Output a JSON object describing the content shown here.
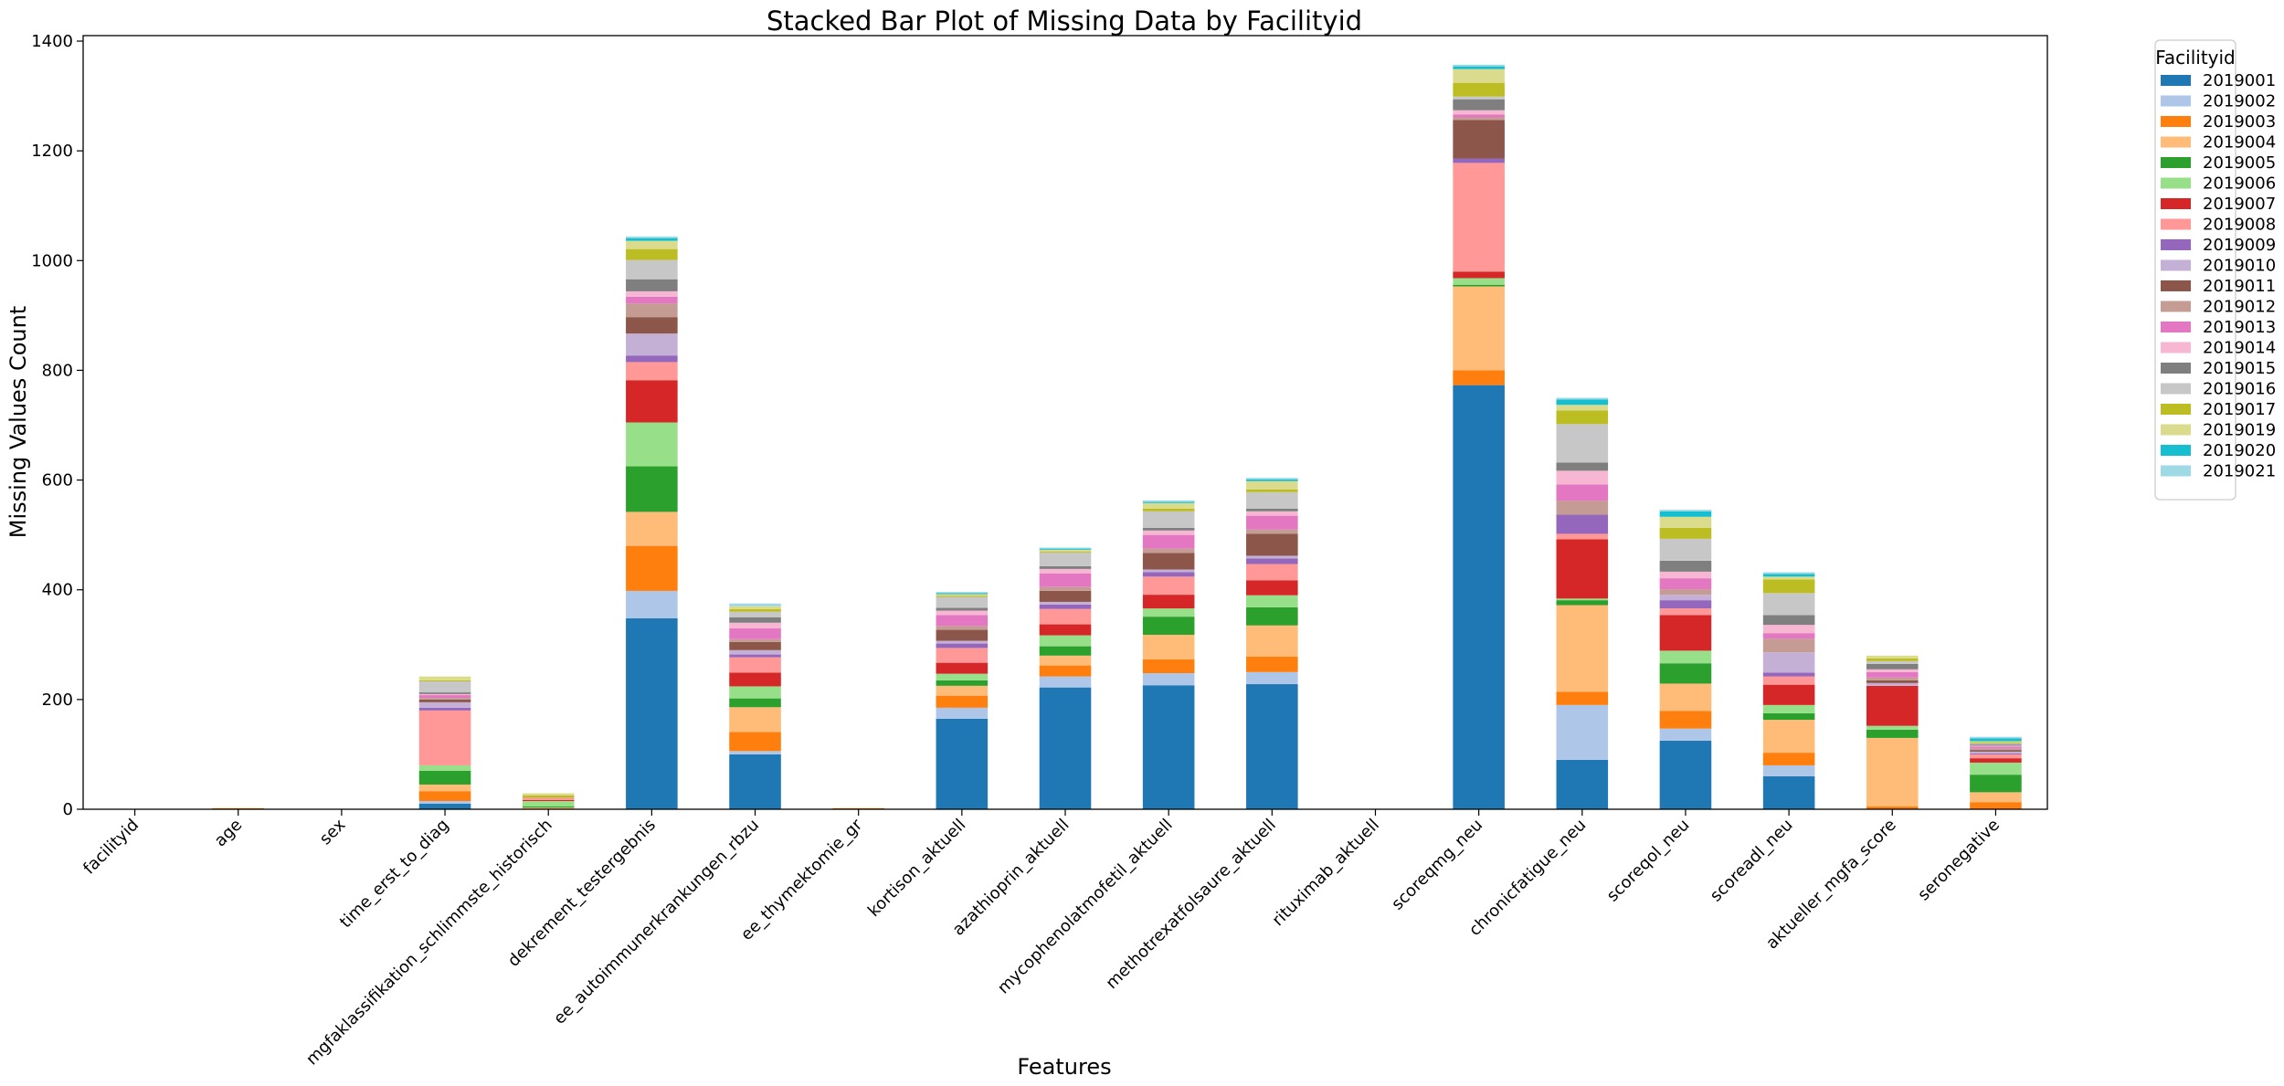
{
  "chart_data": {
    "type": "bar",
    "stacked": true,
    "title": "Stacked Bar Plot of Missing Data by Facilityid",
    "xlabel": "Features",
    "ylabel": "Missing Values Count",
    "ylim": [
      0,
      1410
    ],
    "yticks": [
      0,
      200,
      400,
      600,
      800,
      1000,
      1200,
      1400
    ],
    "grid": false,
    "legend_title": "Facilityid",
    "legend_position": "outside-top-right",
    "categories": [
      "facilityid",
      "age",
      "sex",
      "time_erst_to_diag",
      "mgfaklassifikation_schlimmste_historisch",
      "dekrement_testergebnis",
      "ee_autoimmunerkrankungen_rbzu",
      "ee_thymektomie_gr",
      "kortison_aktuell",
      "azathioprin_aktuell",
      "mycophenolatmofetil_aktuell",
      "methotrexatfolsaure_aktuell",
      "rituximab_aktuell",
      "scoreqmg_neu",
      "chronicfatigue_neu",
      "scoreqol_neu",
      "scoreadl_neu",
      "aktueller_mgfa_score",
      "seronegative"
    ],
    "series": [
      {
        "name": "2019001",
        "color": "#1f77b4",
        "values": [
          0,
          0,
          0,
          10,
          0,
          348,
          100,
          0,
          165,
          222,
          226,
          228,
          0,
          773,
          90,
          125,
          60,
          0,
          0
        ]
      },
      {
        "name": "2019002",
        "color": "#aec7e8",
        "values": [
          0,
          0,
          0,
          5,
          0,
          50,
          6,
          0,
          20,
          20,
          22,
          22,
          0,
          0,
          100,
          22,
          20,
          0,
          0
        ]
      },
      {
        "name": "2019003",
        "color": "#ff7f0e",
        "values": [
          0,
          2,
          0,
          18,
          0,
          82,
          35,
          2,
          22,
          20,
          25,
          28,
          0,
          27,
          24,
          32,
          23,
          5,
          13
        ]
      },
      {
        "name": "2019004",
        "color": "#ffbb78",
        "values": [
          0,
          0,
          0,
          12,
          3,
          62,
          45,
          0,
          18,
          18,
          45,
          57,
          0,
          153,
          158,
          50,
          60,
          125,
          18
        ]
      },
      {
        "name": "2019005",
        "color": "#2ca02c",
        "values": [
          0,
          0,
          0,
          25,
          2,
          83,
          16,
          0,
          10,
          17,
          33,
          33,
          0,
          3,
          9,
          37,
          12,
          15,
          32
        ]
      },
      {
        "name": "2019006",
        "color": "#98df8a",
        "values": [
          0,
          0,
          0,
          10,
          10,
          80,
          22,
          0,
          12,
          20,
          15,
          22,
          0,
          12,
          3,
          23,
          15,
          7,
          22
        ]
      },
      {
        "name": "2019007",
        "color": "#d62728",
        "values": [
          0,
          0,
          0,
          0,
          2,
          77,
          25,
          0,
          20,
          20,
          25,
          27,
          0,
          12,
          108,
          65,
          37,
          73,
          8
        ]
      },
      {
        "name": "2019008",
        "color": "#ff9896",
        "values": [
          0,
          0,
          0,
          100,
          4,
          33,
          28,
          0,
          27,
          28,
          33,
          30,
          0,
          198,
          10,
          12,
          15,
          0,
          7
        ]
      },
      {
        "name": "2019009",
        "color": "#9467bd",
        "values": [
          0,
          0,
          0,
          5,
          0,
          12,
          5,
          0,
          8,
          8,
          8,
          10,
          0,
          8,
          35,
          15,
          7,
          0,
          2
        ]
      },
      {
        "name": "2019010",
        "color": "#c5b0d5",
        "values": [
          0,
          0,
          0,
          10,
          0,
          40,
          8,
          0,
          5,
          5,
          5,
          5,
          0,
          0,
          0,
          10,
          37,
          5,
          3
        ]
      },
      {
        "name": "2019011",
        "color": "#8c564b",
        "values": [
          0,
          0,
          0,
          5,
          0,
          30,
          15,
          0,
          20,
          20,
          30,
          40,
          0,
          70,
          0,
          0,
          0,
          5,
          3
        ]
      },
      {
        "name": "2019012",
        "color": "#c49c94",
        "values": [
          0,
          0,
          0,
          3,
          0,
          25,
          5,
          0,
          7,
          7,
          8,
          8,
          0,
          5,
          25,
          10,
          25,
          5,
          3
        ]
      },
      {
        "name": "2019013",
        "color": "#e377c2",
        "values": [
          0,
          0,
          0,
          5,
          0,
          12,
          20,
          0,
          20,
          25,
          25,
          25,
          0,
          5,
          30,
          20,
          10,
          10,
          3
        ]
      },
      {
        "name": "2019014",
        "color": "#f7b6d2",
        "values": [
          0,
          0,
          0,
          2,
          0,
          10,
          10,
          0,
          8,
          8,
          8,
          8,
          0,
          8,
          25,
          12,
          15,
          5,
          2
        ]
      },
      {
        "name": "2019015",
        "color": "#7f7f7f",
        "values": [
          0,
          0,
          0,
          3,
          0,
          22,
          10,
          0,
          5,
          5,
          5,
          5,
          0,
          20,
          15,
          20,
          18,
          10,
          2
        ]
      },
      {
        "name": "2019016",
        "color": "#c7c7c7",
        "values": [
          0,
          0,
          0,
          20,
          0,
          35,
          10,
          0,
          20,
          25,
          30,
          30,
          0,
          5,
          70,
          40,
          40,
          5,
          2
        ]
      },
      {
        "name": "2019017",
        "color": "#bcbd22",
        "values": [
          0,
          0,
          0,
          2,
          4,
          20,
          5,
          0,
          2,
          2,
          5,
          5,
          0,
          25,
          25,
          20,
          25,
          5,
          2
        ]
      },
      {
        "name": "2019019",
        "color": "#dbdb8d",
        "values": [
          0,
          0,
          0,
          7,
          4,
          15,
          5,
          0,
          3,
          3,
          10,
          15,
          0,
          25,
          10,
          20,
          5,
          5,
          2
        ]
      },
      {
        "name": "2019020",
        "color": "#17becf",
        "values": [
          0,
          0,
          0,
          0,
          0,
          5,
          0,
          0,
          2,
          2,
          2,
          3,
          0,
          5,
          10,
          10,
          5,
          0,
          5
        ]
      },
      {
        "name": "2019021",
        "color": "#9edae5",
        "values": [
          0,
          0,
          0,
          0,
          0,
          3,
          5,
          0,
          2,
          2,
          3,
          3,
          0,
          3,
          3,
          3,
          3,
          0,
          3
        ]
      }
    ]
  }
}
